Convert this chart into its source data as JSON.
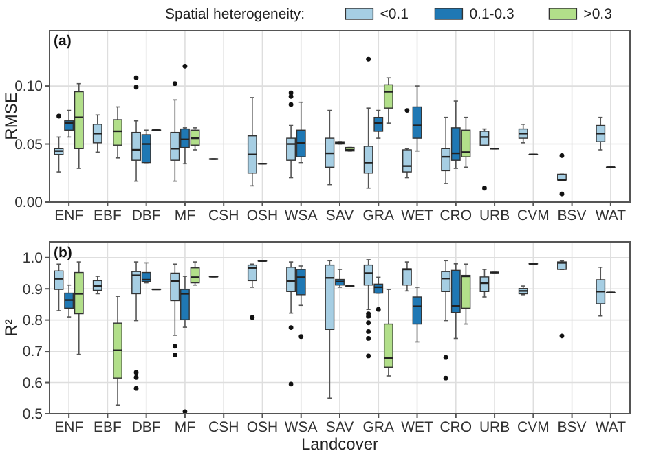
{
  "chart_data": [
    {
      "type": "box",
      "title": "(a)",
      "ylabel": "RMSE",
      "legend_title": "Spatial heterogeneity:",
      "legend": "top",
      "grid": true,
      "categories": [
        "ENF",
        "EBF",
        "DBF",
        "MF",
        "CSH",
        "OSH",
        "WSA",
        "SAV",
        "GRA",
        "WET",
        "CRO",
        "URB",
        "CVM",
        "BSV",
        "WAT"
      ],
      "ylim": [
        0,
        0.148
      ],
      "yticks": [
        {
          "value": 0,
          "label": "0.00"
        },
        {
          "value": 0.05,
          "label": "0.05"
        },
        {
          "value": 0.1,
          "label": "0.10"
        }
      ],
      "series": [
        {
          "name": "<0.1",
          "color": "#a6cee3",
          "boxes": [
            {
              "low": 0.026,
              "q1": 0.041,
              "median": 0.044,
              "q3": 0.046,
              "high": 0.056,
              "outliers": [
                0.074
              ]
            },
            {
              "low": 0.043,
              "q1": 0.051,
              "median": 0.059,
              "q3": 0.067,
              "high": 0.075
            },
            {
              "low": 0.018,
              "q1": 0.036,
              "median": 0.045,
              "q3": 0.06,
              "high": 0.07,
              "outliers": [
                0.107,
                0.099
              ]
            },
            {
              "low": 0.018,
              "q1": 0.036,
              "median": 0.046,
              "q3": 0.06,
              "high": 0.088,
              "outliers": [
                0.102
              ]
            },
            {
              "low": 0.037,
              "q1": 0.037,
              "median": 0.037,
              "q3": 0.037,
              "high": 0.037
            },
            {
              "low": 0.014,
              "q1": 0.025,
              "median": 0.041,
              "q3": 0.057,
              "high": 0.09
            },
            {
              "low": 0.021,
              "q1": 0.036,
              "median": 0.05,
              "q3": 0.055,
              "high": 0.066,
              "outliers": [
                0.094,
                0.091,
                0.084
              ]
            },
            {
              "low": 0.015,
              "q1": 0.03,
              "median": 0.042,
              "q3": 0.055,
              "high": 0.079
            },
            {
              "low": 0.012,
              "q1": 0.025,
              "median": 0.034,
              "q3": 0.048,
              "high": 0.081,
              "outliers": [
                0.123
              ]
            },
            {
              "low": 0.021,
              "q1": 0.026,
              "median": 0.031,
              "q3": 0.045,
              "high": 0.046,
              "outliers": [
                0.079
              ]
            },
            {
              "low": 0.016,
              "q1": 0.027,
              "median": 0.039,
              "q3": 0.046,
              "high": 0.073
            },
            {
              "low": 0.049,
              "q1": 0.049,
              "median": 0.056,
              "q3": 0.061,
              "high": 0.063,
              "outliers": [
                0.012
              ]
            },
            {
              "low": 0.051,
              "q1": 0.055,
              "median": 0.059,
              "q3": 0.063,
              "high": 0.067
            },
            {
              "low": 0.019,
              "q1": 0.019,
              "median": 0.019,
              "q3": 0.024,
              "high": 0.024,
              "outliers": [
                0.04,
                0.007
              ]
            },
            {
              "low": 0.045,
              "q1": 0.052,
              "median": 0.059,
              "q3": 0.066,
              "high": 0.073
            }
          ]
        },
        {
          "name": "0.1-0.3",
          "color": "#1f78b4",
          "boxes": [
            {
              "low": 0.056,
              "q1": 0.062,
              "median": 0.068,
              "q3": 0.07,
              "high": 0.079
            },
            null,
            {
              "low": 0.034,
              "q1": 0.034,
              "median": 0.05,
              "q3": 0.058,
              "high": 0.062
            },
            {
              "low": 0.033,
              "q1": 0.047,
              "median": 0.054,
              "q3": 0.063,
              "high": 0.064,
              "outliers": [
                0.117
              ]
            },
            null,
            {
              "low": 0.033,
              "q1": 0.033,
              "median": 0.033,
              "q3": 0.033,
              "high": 0.033
            },
            {
              "low": 0.034,
              "q1": 0.039,
              "median": 0.051,
              "q3": 0.062,
              "high": 0.086
            },
            {
              "low": 0.05,
              "q1": 0.05,
              "median": 0.051,
              "q3": 0.052,
              "high": 0.052
            },
            {
              "low": 0.055,
              "q1": 0.061,
              "median": 0.068,
              "q3": 0.073,
              "high": 0.079
            },
            {
              "low": 0.044,
              "q1": 0.055,
              "median": 0.066,
              "q3": 0.082,
              "high": 0.1
            },
            {
              "low": 0.029,
              "q1": 0.036,
              "median": 0.042,
              "q3": 0.064,
              "high": 0.087
            },
            {
              "low": 0.046,
              "q1": 0.046,
              "median": 0.046,
              "q3": 0.046,
              "high": 0.046
            },
            {
              "low": 0.041,
              "q1": 0.041,
              "median": 0.041,
              "q3": 0.041,
              "high": 0.041
            },
            null,
            {
              "low": 0.03,
              "q1": 0.03,
              "median": 0.03,
              "q3": 0.03,
              "high": 0.03
            }
          ]
        },
        {
          "name": ">0.3",
          "color": "#b2df8a",
          "boxes": [
            {
              "low": 0.029,
              "q1": 0.046,
              "median": 0.073,
              "q3": 0.095,
              "high": 0.102
            },
            {
              "low": 0.038,
              "q1": 0.049,
              "median": 0.061,
              "q3": 0.071,
              "high": 0.082
            },
            {
              "low": 0.062,
              "q1": 0.062,
              "median": 0.062,
              "q3": 0.062,
              "high": 0.062
            },
            {
              "low": 0.045,
              "q1": 0.049,
              "median": 0.055,
              "q3": 0.062,
              "high": 0.064
            },
            null,
            null,
            null,
            {
              "low": 0.044,
              "q1": 0.044,
              "median": 0.045,
              "q3": 0.047,
              "high": 0.047
            },
            {
              "low": 0.068,
              "q1": 0.081,
              "median": 0.095,
              "q3": 0.101,
              "high": 0.107
            },
            null,
            {
              "low": 0.03,
              "q1": 0.039,
              "median": 0.043,
              "q3": 0.062,
              "high": 0.073
            },
            null,
            null,
            null,
            null
          ]
        }
      ]
    },
    {
      "type": "box",
      "title": "(b)",
      "ylabel": "R²",
      "xlabel": "Landcover",
      "legend": false,
      "grid": true,
      "categories": [
        "ENF",
        "EBF",
        "DBF",
        "MF",
        "CSH",
        "OSH",
        "WSA",
        "SAV",
        "GRA",
        "WET",
        "CRO",
        "URB",
        "CVM",
        "BSV",
        "WAT"
      ],
      "ylim": [
        0.5,
        1.05
      ],
      "yticks": [
        0.5,
        0.6,
        0.7,
        0.8,
        0.9,
        {
          "value": 1,
          "label": "1.0"
        }
      ],
      "series": [
        {
          "color": "#a6cee3",
          "boxes": [
            {
              "low": 0.83,
              "q1": 0.898,
              "median": 0.932,
              "q3": 0.957,
              "high": 0.979
            },
            {
              "low": 0.884,
              "q1": 0.895,
              "median": 0.909,
              "q3": 0.926,
              "high": 0.94
            },
            {
              "low": 0.798,
              "q1": 0.884,
              "median": 0.943,
              "q3": 0.955,
              "high": 0.986,
              "outliers": [
                0.632,
                0.616,
                0.581
              ]
            },
            {
              "low": 0.751,
              "q1": 0.862,
              "median": 0.925,
              "q3": 0.95,
              "high": 0.979,
              "outliers": [
                0.716,
                0.688
              ]
            },
            {
              "low": 0.939,
              "q1": 0.939,
              "median": 0.939,
              "q3": 0.939,
              "high": 0.939
            },
            {
              "low": 0.905,
              "q1": 0.926,
              "median": 0.967,
              "q3": 0.976,
              "high": 0.979,
              "outliers": [
                0.808
              ]
            },
            {
              "low": 0.822,
              "q1": 0.891,
              "median": 0.925,
              "q3": 0.969,
              "high": 0.986,
              "outliers": [
                0.776,
                0.595
              ]
            },
            {
              "low": 0.55,
              "q1": 0.77,
              "median": 0.935,
              "q3": 0.976,
              "high": 0.99
            },
            {
              "low": 0.834,
              "q1": 0.912,
              "median": 0.95,
              "q3": 0.976,
              "high": 0.993,
              "outliers": [
                0.82,
                0.812,
                0.791,
                0.763,
                0.741,
                0.685
              ]
            },
            {
              "low": 0.893,
              "q1": 0.912,
              "median": 0.962,
              "q3": 0.964,
              "high": 0.986
            },
            {
              "low": 0.798,
              "q1": 0.891,
              "median": 0.933,
              "q3": 0.955,
              "high": 0.99,
              "outliers": [
                0.68,
                0.614
              ]
            },
            {
              "low": 0.874,
              "q1": 0.891,
              "median": 0.918,
              "q3": 0.938,
              "high": 0.962
            },
            {
              "low": 0.881,
              "q1": 0.884,
              "median": 0.893,
              "q3": 0.901,
              "high": 0.909
            },
            {
              "low": 0.962,
              "q1": 0.962,
              "median": 0.983,
              "q3": 0.986,
              "high": 0.989,
              "outliers": [
                0.749
              ]
            },
            {
              "low": 0.813,
              "q1": 0.852,
              "median": 0.891,
              "q3": 0.929,
              "high": 0.969
            }
          ]
        },
        {
          "color": "#1f78b4",
          "boxes": [
            {
              "low": 0.81,
              "q1": 0.838,
              "median": 0.864,
              "q3": 0.886,
              "high": 0.912
            },
            null,
            {
              "low": 0.919,
              "q1": 0.923,
              "median": 0.929,
              "q3": 0.952,
              "high": 0.983
            },
            {
              "low": 0.777,
              "q1": 0.801,
              "median": 0.884,
              "q3": 0.898,
              "high": 0.94,
              "outliers": [
                0.507
              ]
            },
            null,
            {
              "low": 0.989,
              "q1": 0.989,
              "median": 0.989,
              "q3": 0.989,
              "high": 0.989
            },
            {
              "low": 0.847,
              "q1": 0.881,
              "median": 0.937,
              "q3": 0.962,
              "high": 0.973,
              "outliers": [
                0.747
              ]
            },
            {
              "low": 0.905,
              "q1": 0.912,
              "median": 0.923,
              "q3": 0.93,
              "high": 0.962
            },
            {
              "low": 0.886,
              "q1": 0.886,
              "median": 0.905,
              "q3": 0.915,
              "high": 0.937,
              "outliers": [
                0.834
              ]
            },
            {
              "low": 0.73,
              "q1": 0.787,
              "median": 0.844,
              "q3": 0.874,
              "high": 0.905
            },
            {
              "low": 0.741,
              "q1": 0.824,
              "median": 0.845,
              "q3": 0.959,
              "high": 0.98
            },
            {
              "low": 0.952,
              "q1": 0.952,
              "median": 0.952,
              "q3": 0.952,
              "high": 0.952
            },
            {
              "low": 0.98,
              "q1": 0.98,
              "median": 0.98,
              "q3": 0.98,
              "high": 0.98
            },
            null,
            {
              "low": 0.888,
              "q1": 0.888,
              "median": 0.888,
              "q3": 0.888,
              "high": 0.888
            }
          ]
        },
        {
          "color": "#b2df8a",
          "boxes": [
            {
              "low": 0.69,
              "q1": 0.82,
              "median": 0.884,
              "q3": 0.952,
              "high": 0.986
            },
            {
              "low": 0.528,
              "q1": 0.614,
              "median": 0.703,
              "q3": 0.79,
              "high": 0.876
            },
            {
              "low": 0.898,
              "q1": 0.898,
              "median": 0.898,
              "q3": 0.898,
              "high": 0.898
            },
            {
              "low": 0.912,
              "q1": 0.919,
              "median": 0.937,
              "q3": 0.967,
              "high": 0.986
            },
            null,
            null,
            null,
            {
              "low": 0.909,
              "q1": 0.909,
              "median": 0.909,
              "q3": 0.909,
              "high": 0.909
            },
            {
              "low": 0.621,
              "q1": 0.649,
              "median": 0.678,
              "q3": 0.787,
              "high": 0.898
            },
            null,
            {
              "low": 0.787,
              "q1": 0.838,
              "median": 0.94,
              "q3": 0.943,
              "high": 0.979
            },
            null,
            null,
            null,
            null
          ]
        }
      ]
    }
  ]
}
